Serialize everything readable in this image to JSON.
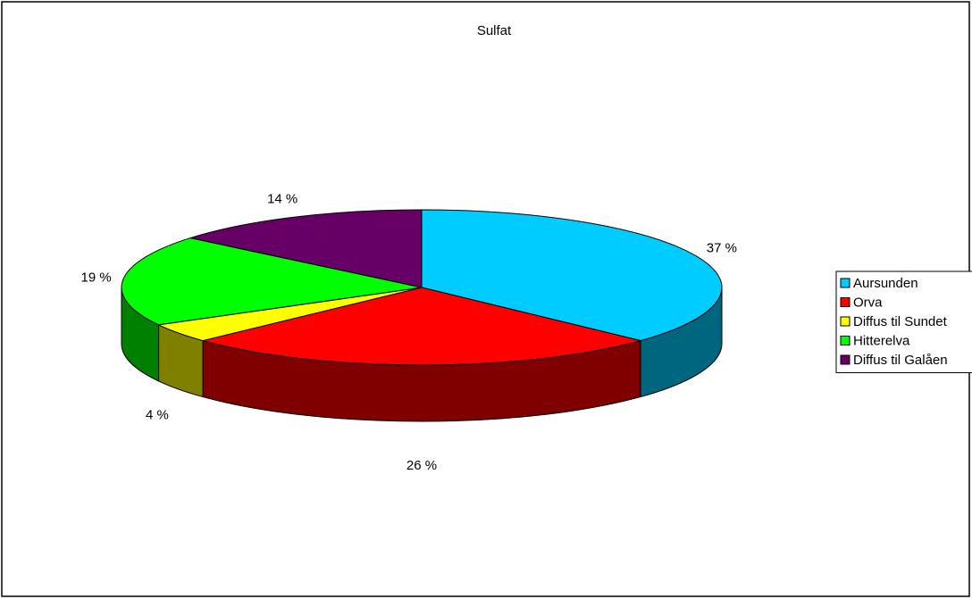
{
  "chart_data": {
    "type": "pie3d",
    "title": "Sulfat",
    "categories": [
      "Aursunden",
      "Orva",
      "Diffus til Sundet",
      "Hitterelva",
      "Diffus til Galåen"
    ],
    "values": [
      37,
      26,
      4,
      19,
      14
    ],
    "value_labels": [
      "37 %",
      "26 %",
      "4 %",
      "19 %",
      "14 %"
    ],
    "colors": [
      "#00ccff",
      "#ff0000",
      "#ffff00",
      "#00ff00",
      "#660066"
    ],
    "side_colors": [
      "#006680",
      "#800000",
      "#808000",
      "#008000",
      "#330033"
    ],
    "legend": "right"
  }
}
